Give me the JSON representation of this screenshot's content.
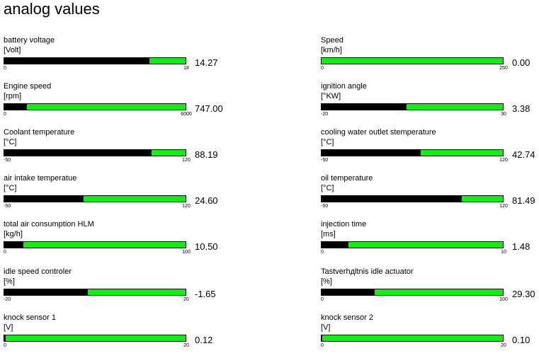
{
  "page": {
    "title": "analog values"
  },
  "colors": {
    "bar_background": "#11ee11",
    "bar_fill": "#000000"
  },
  "gauges": [
    {
      "name": "battery voltage",
      "unit": "[Volt]",
      "min": "0",
      "max": "18",
      "value": "14.27",
      "fill_fraction": 0.8
    },
    {
      "name": "Speed",
      "unit": "[km/h]",
      "min": "0",
      "max": "250",
      "value": "0.00",
      "fill_fraction": 0.0
    },
    {
      "name": "Engine speed",
      "unit": "[rpm]",
      "min": "0",
      "max": "6000",
      "value": "747.00",
      "fill_fraction": 0.125
    },
    {
      "name": "ignition angle",
      "unit": "[°KW]",
      "min": "-20",
      "max": "30",
      "value": "3.38",
      "fill_fraction": 0.468
    },
    {
      "name": "Coolant temperature",
      "unit": "[°C]",
      "min": "-50",
      "max": "120",
      "value": "88.19",
      "fill_fraction": 0.813
    },
    {
      "name": "cooling water outlet stemperature",
      "unit": "[°C]",
      "min": "-50",
      "max": "120",
      "value": "42.74",
      "fill_fraction": 0.546
    },
    {
      "name": "air intake temperatue",
      "unit": "[°C]",
      "min": "-50",
      "max": "120",
      "value": "24.60",
      "fill_fraction": 0.439
    },
    {
      "name": "oil temperature",
      "unit": "[°C]",
      "min": "-50",
      "max": "120",
      "value": "81.49",
      "fill_fraction": 0.774
    },
    {
      "name": "total air consumption HLM",
      "unit": "[kg/h]",
      "min": "0",
      "max": "100",
      "value": "10.50",
      "fill_fraction": 0.105
    },
    {
      "name": "injection time",
      "unit": "[ms]",
      "min": "0",
      "max": "10",
      "value": "1.48",
      "fill_fraction": 0.148
    },
    {
      "name": "idle speed controler",
      "unit": "[%]",
      "min": "-20",
      "max": "20",
      "value": "-1.65",
      "fill_fraction": 0.459
    },
    {
      "name": "Tastverhдltnis idle actuator",
      "unit": "[%]",
      "min": "0",
      "max": "100",
      "value": "29.30",
      "fill_fraction": 0.293
    },
    {
      "name": "knock sensor 1",
      "unit": "[V]",
      "min": "0",
      "max": "20",
      "value": "0.12",
      "fill_fraction": 0.006
    },
    {
      "name": "knock sensor 2",
      "unit": "[V]",
      "min": "0",
      "max": "20",
      "value": "0.10",
      "fill_fraction": 0.005
    }
  ]
}
